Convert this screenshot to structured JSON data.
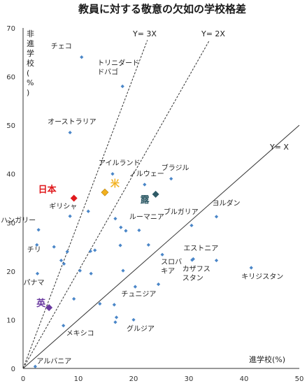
{
  "chart_data": {
    "type": "scatter",
    "title": "教員に対する敬意の欠如の学校格差",
    "xlabel": "進学校(%)",
    "ylabel": "非進学校(%)",
    "xlim": [
      0,
      50
    ],
    "ylim": [
      0,
      70
    ],
    "xticks": [
      "0",
      "10",
      "20",
      "30",
      "40",
      "50"
    ],
    "yticks": [
      "0",
      "10",
      "20",
      "30",
      "40",
      "50",
      "60",
      "70"
    ],
    "grid": false,
    "colors": {
      "point": "#4a86c8",
      "japan": "#e0191c",
      "usa": "#f2b01e",
      "russia": "#2e5a66",
      "uk": "#6a3aa0",
      "line": "#333333"
    },
    "reference_lines": [
      {
        "label": "Y= 3X",
        "slope": 3
      },
      {
        "label": "Y= 2X",
        "slope": 2
      },
      {
        "label": "Y= X",
        "slope": 1
      }
    ],
    "highlighted": [
      {
        "label": "日本",
        "x": 9.2,
        "y": 35.0
      },
      {
        "label": "米",
        "x": 14.8,
        "y": 36.2
      },
      {
        "label": "露",
        "x": 24.0,
        "y": 35.8
      },
      {
        "label": "英",
        "x": 4.7,
        "y": 12.5
      }
    ],
    "points": [
      {
        "label": "チェコ",
        "x": 10.6,
        "y": 64.0
      },
      {
        "label": "トリニダード\nドバゴ",
        "x": 18.0,
        "y": 58.0
      },
      {
        "label": "オーストラリア",
        "x": 8.5,
        "y": 48.5
      },
      {
        "label": "アイルランド",
        "x": 16.2,
        "y": 40.0
      },
      {
        "label": "ノルウェー",
        "x": 22.0,
        "y": 37.8
      },
      {
        "label": "ブラジル",
        "x": 26.8,
        "y": 39.0
      },
      {
        "label": "ギリシャ",
        "x": 11.8,
        "y": 32.3
      },
      {
        "label": "ハンガリー",
        "x": 2.8,
        "y": 28.5
      },
      {
        "label": "ブルガリア",
        "x": 30.5,
        "y": 29.4
      },
      {
        "label": "ヨルダン",
        "x": 35.0,
        "y": 31.2
      },
      {
        "label": "ルーマニア",
        "x": 21.0,
        "y": 28.4
      },
      {
        "label": "チリ",
        "x": 2.5,
        "y": 25.4
      },
      {
        "label": "エストニア",
        "x": 30.8,
        "y": 22.5
      },
      {
        "label": "スロバ\nキア",
        "x": 25.2,
        "y": 23.4
      },
      {
        "label": "カザフス\nスタン",
        "x": 30.6,
        "y": 22.3
      },
      {
        "label": "キリジスタン",
        "x": 41.3,
        "y": 20.7
      },
      {
        "label": "パナマ",
        "x": 2.6,
        "y": 19.5
      },
      {
        "label": "チュニジア",
        "x": 20.3,
        "y": 16.8
      },
      {
        "label": "グルジア",
        "x": 20.0,
        "y": 10.0
      },
      {
        "label": "メキシコ",
        "x": 7.3,
        "y": 8.8
      },
      {
        "label": "アルバニア",
        "x": 2.2,
        "y": 0.4
      },
      {
        "label": "",
        "x": 5.6,
        "y": 25.0
      },
      {
        "label": "",
        "x": 6.9,
        "y": 22.2
      },
      {
        "label": "",
        "x": 7.4,
        "y": 21.5
      },
      {
        "label": "",
        "x": 8.0,
        "y": 24.0
      },
      {
        "label": "",
        "x": 8.5,
        "y": 31.3
      },
      {
        "label": "",
        "x": 9.2,
        "y": 14.3
      },
      {
        "label": "",
        "x": 10.3,
        "y": 20.1
      },
      {
        "label": "",
        "x": 12.2,
        "y": 24.1
      },
      {
        "label": "",
        "x": 12.3,
        "y": 19.5
      },
      {
        "label": "",
        "x": 13.0,
        "y": 24.3
      },
      {
        "label": "",
        "x": 13.9,
        "y": 13.3
      },
      {
        "label": "",
        "x": 16.5,
        "y": 13.1
      },
      {
        "label": "",
        "x": 16.7,
        "y": 30.8
      },
      {
        "label": "",
        "x": 16.9,
        "y": 10.5
      },
      {
        "label": "",
        "x": 16.7,
        "y": 9.5
      },
      {
        "label": "",
        "x": 17.6,
        "y": 25.3
      },
      {
        "label": "",
        "x": 17.7,
        "y": 29.0
      },
      {
        "label": "",
        "x": 18.1,
        "y": 20.1
      },
      {
        "label": "",
        "x": 18.6,
        "y": 28.3
      },
      {
        "label": "",
        "x": 22.7,
        "y": 25.4
      },
      {
        "label": "",
        "x": 24.5,
        "y": 17.3
      },
      {
        "label": "",
        "x": 35.0,
        "y": 22.2
      }
    ]
  }
}
